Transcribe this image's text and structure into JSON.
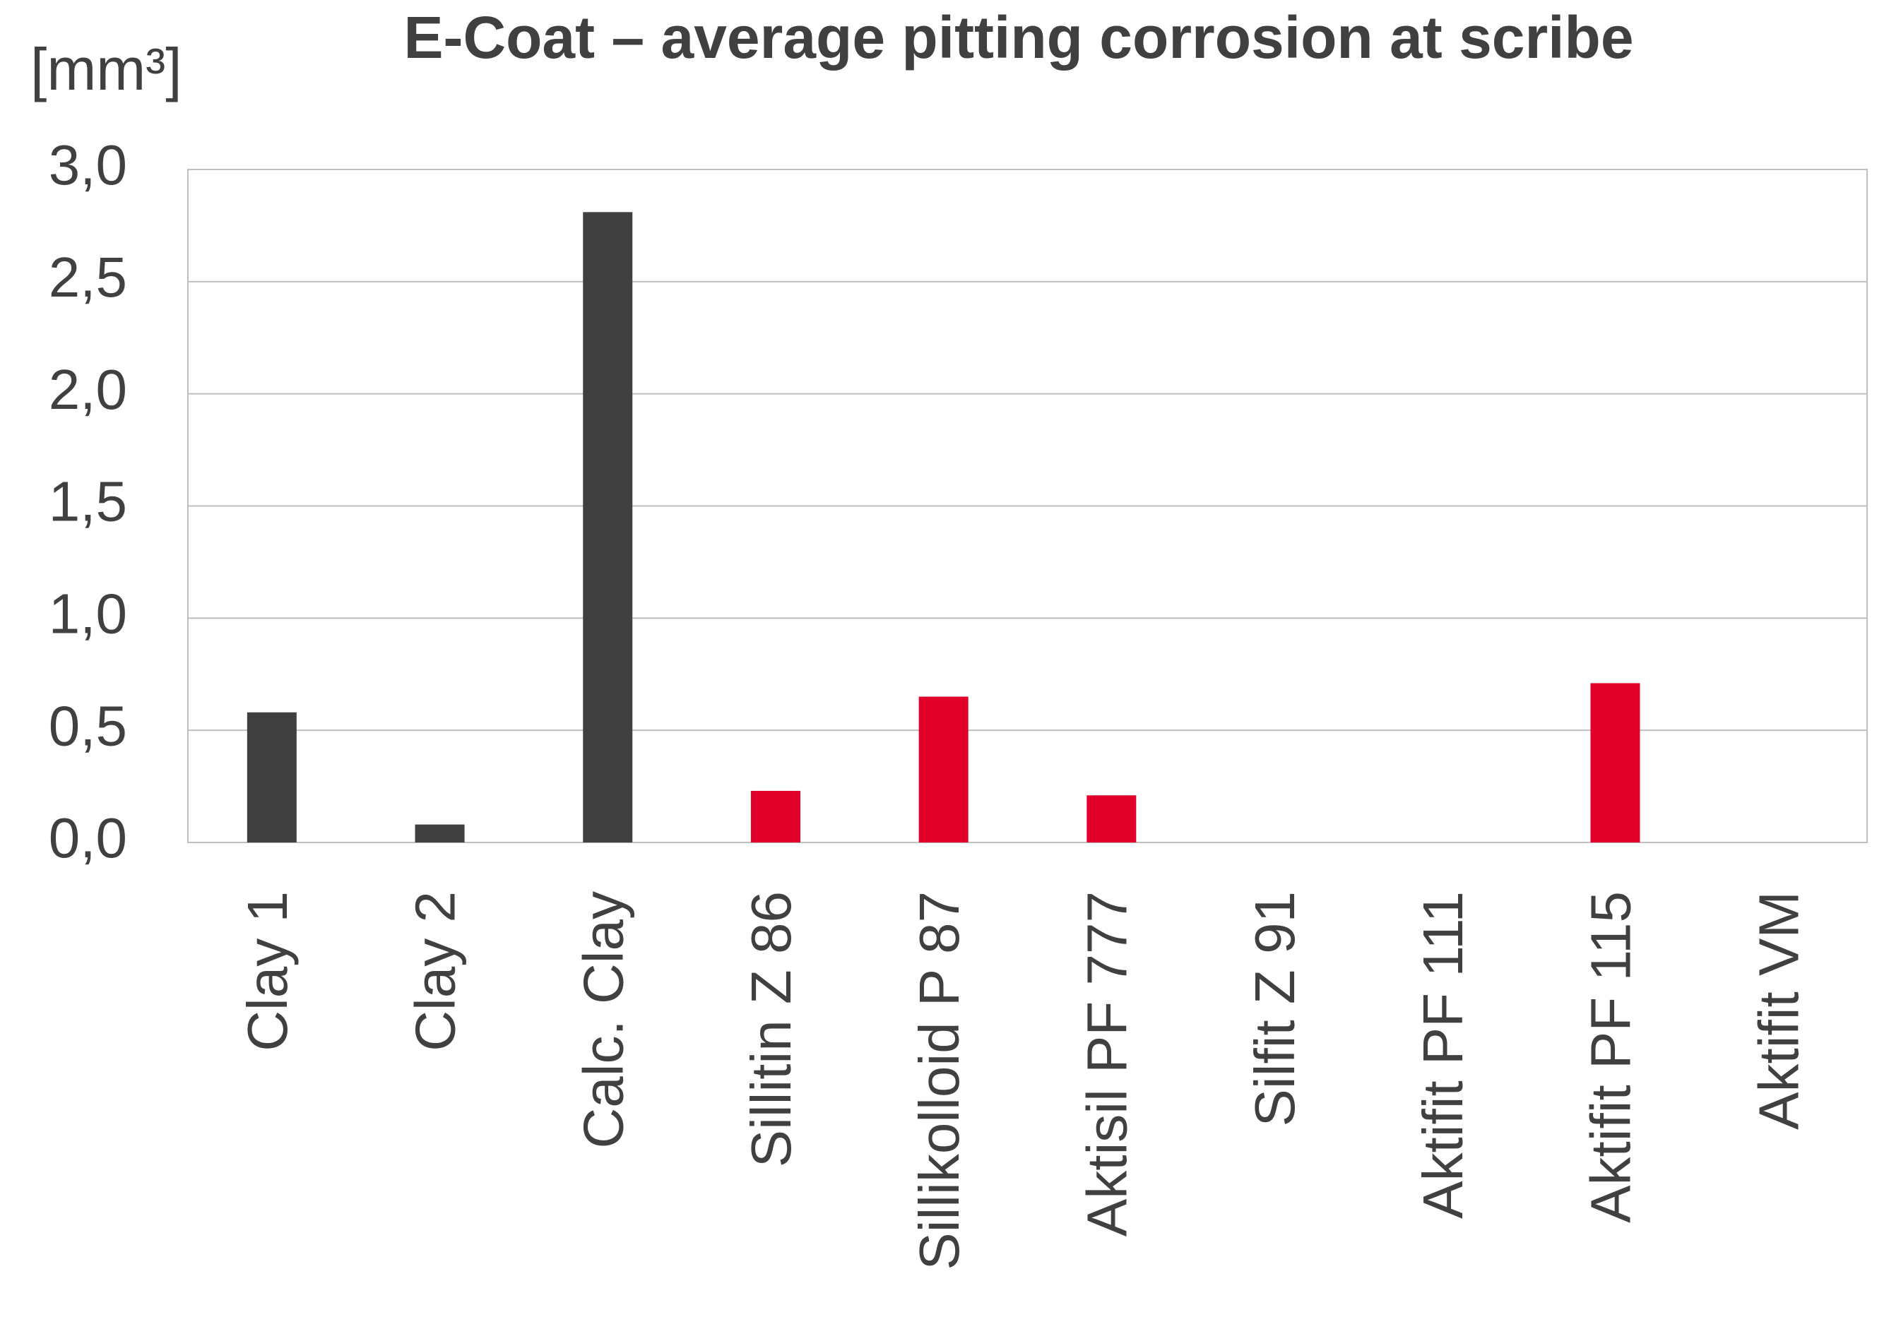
{
  "chart_data": {
    "type": "bar",
    "title": "E-Coat – average pitting corrosion at scribe",
    "y_label": "[mm³]",
    "categories": [
      "Clay 1",
      "Clay 2",
      "Calc. Clay",
      "Sillitin Z 86",
      "Sillikolloid P 87",
      "Aktisil PF 777",
      "Silfit Z 91",
      "Aktifit PF 111",
      "Aktifit PF 115",
      "Aktifit VM"
    ],
    "values": [
      0.58,
      0.08,
      2.81,
      0.23,
      0.65,
      0.21,
      0,
      0,
      0.71,
      0
    ],
    "colors": [
      "#404040",
      "#404040",
      "#404040",
      "#e0002a",
      "#e0002a",
      "#e0002a",
      "#e0002a",
      "#e0002a",
      "#e0002a",
      "#e0002a"
    ],
    "ylim": [
      0,
      3
    ],
    "yticks": [
      {
        "value": 0,
        "label": "0,0"
      },
      {
        "value": 0.5,
        "label": "0,5"
      },
      {
        "value": 1,
        "label": "1,0"
      },
      {
        "value": 1.5,
        "label": "1,5"
      },
      {
        "value": 2,
        "label": "2,0"
      },
      {
        "value": 2.5,
        "label": "2,5"
      },
      {
        "value": 3,
        "label": "3,0"
      }
    ],
    "grid": true
  }
}
